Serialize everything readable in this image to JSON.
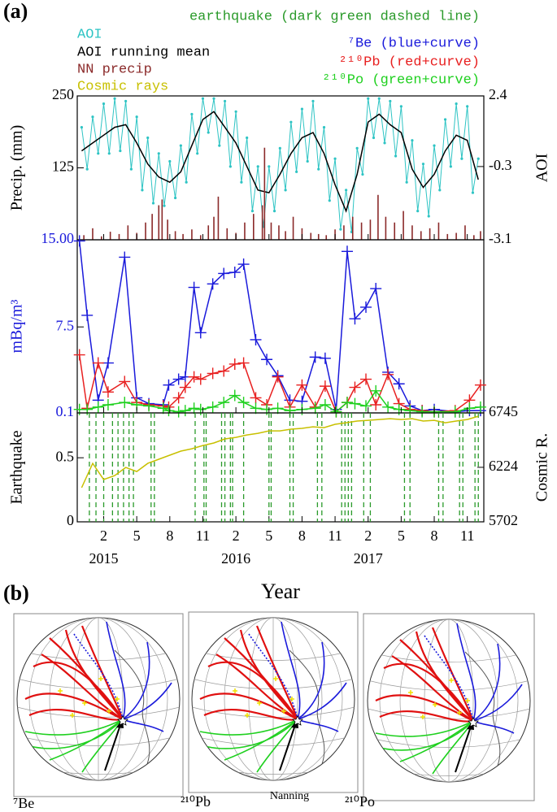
{
  "figure": {
    "panel_labels": [
      "(a)",
      "(b)"
    ]
  },
  "maps": {
    "labels": [
      "⁷Be",
      "²¹⁰Pb",
      "²¹⁰Po"
    ],
    "annotation": "Nanning"
  },
  "chart_data": [
    {
      "type": "line",
      "ylabel": "Precip. (mm)",
      "y2label": "AOI",
      "xlim": [
        -0.4,
        36.5
      ],
      "ylim": [
        0,
        250
      ],
      "yticks": [
        250,
        125
      ],
      "y2lim": [
        -3.1,
        2.4
      ],
      "y2ticks": [
        2.4,
        -0.3,
        -3.1
      ],
      "series": [
        {
          "name": "AOI",
          "color": "#2ec4c4",
          "axis": "y2",
          "marker": "dot",
          "x": [
            0,
            0.5,
            1,
            1.5,
            2,
            2.5,
            3,
            3.5,
            4,
            4.5,
            5,
            5.5,
            6,
            6.5,
            7,
            7.5,
            8,
            8.5,
            9,
            9.5,
            10,
            10.5,
            11,
            11.5,
            12,
            12.5,
            13,
            13.5,
            14,
            14.5,
            15,
            15.5,
            16,
            16.5,
            17,
            17.5,
            18,
            18.5,
            19,
            19.5,
            20,
            20.5,
            21,
            21.5,
            22,
            22.5,
            23,
            23.5,
            24,
            24.5,
            25,
            25.5,
            26,
            26.5,
            27,
            27.5,
            28,
            28.5,
            29,
            29.5,
            30,
            30.5,
            31,
            31.5,
            32,
            32.5,
            33,
            33.5,
            34,
            34.5,
            35,
            35.5,
            36
          ],
          "values": [
            1.2,
            -0.4,
            1.6,
            0.2,
            2.1,
            0.2,
            2.3,
            0.3,
            2.2,
            -0.4,
            1.6,
            -1.2,
            0.8,
            -1.7,
            0.2,
            -1.8,
            -0.1,
            -1.5,
            0.5,
            -0.9,
            1.7,
            0.2,
            2.3,
            1.0,
            2.3,
            0.5,
            2.2,
            -0.3,
            1.8,
            -0.9,
            0.8,
            -2.0,
            -0.3,
            -2.6,
            -0.3,
            -2.0,
            0.4,
            -1.2,
            1.4,
            -0.5,
            1.9,
            -0.1,
            2.2,
            -0.4,
            1.2,
            -1.6,
            0.0,
            -2.7,
            -1.2,
            -2.8,
            0.4,
            -0.6,
            2.3,
            0.8,
            2.3,
            0.6,
            2.2,
            0.1,
            2.0,
            -0.9,
            0.7,
            -2.0,
            -0.2,
            -2.2,
            0.5,
            -1.2,
            1.5,
            -0.3,
            2.1,
            0.0,
            2.0,
            -1.3,
            0.0
          ]
        },
        {
          "name": "AOI running mean",
          "color": "#000000",
          "axis": "y2",
          "x": [
            0,
            1,
            2,
            3,
            4,
            5,
            6,
            7,
            8,
            9,
            10,
            11,
            12,
            13,
            14,
            15,
            16,
            17,
            18,
            19,
            20,
            21,
            22,
            23,
            24,
            25,
            26,
            27,
            28,
            29,
            30,
            31,
            32,
            33,
            34,
            35,
            36
          ],
          "values": [
            0.3,
            0.6,
            0.9,
            1.2,
            1.3,
            0.6,
            -0.2,
            -0.7,
            -0.9,
            -0.5,
            0.5,
            1.5,
            1.8,
            1.2,
            0.6,
            -0.3,
            -1.2,
            -1.3,
            -0.6,
            0.2,
            0.8,
            1.0,
            0.2,
            -1.0,
            -2.0,
            -0.6,
            1.4,
            1.7,
            1.3,
            1.0,
            -0.4,
            -1.1,
            -0.6,
            0.3,
            0.9,
            0.7,
            -0.8
          ]
        },
        {
          "name": "NN precip",
          "color": "#8b2a2a",
          "type": "bar",
          "x": [
            0.2,
            1.0,
            1.8,
            2.6,
            3.4,
            4.2,
            5.0,
            5.8,
            6.4,
            7.0,
            7.3,
            7.8,
            8.5,
            9.2,
            10.0,
            10.8,
            11.5,
            12.0,
            12.4,
            13.2,
            14.0,
            14.8,
            15.6,
            16.4,
            16.6,
            17.2,
            17.9,
            18.5,
            19.2,
            20.0,
            20.8,
            21.5,
            22.2,
            23.0,
            23.8,
            24.6,
            25.4,
            26.2,
            26.9,
            27.6,
            28.4,
            29.2,
            30.0,
            30.8,
            31.6,
            32.4,
            33.2,
            34.0,
            34.8,
            35.6,
            36.2
          ],
          "values": [
            8,
            20,
            6,
            14,
            10,
            25,
            12,
            30,
            45,
            60,
            70,
            35,
            15,
            10,
            18,
            8,
            25,
            40,
            75,
            20,
            12,
            30,
            45,
            60,
            160,
            30,
            25,
            15,
            40,
            20,
            12,
            10,
            8,
            18,
            25,
            40,
            30,
            35,
            78,
            40,
            30,
            50,
            25,
            15,
            20,
            30,
            10,
            12,
            25,
            8,
            15
          ]
        }
      ]
    },
    {
      "type": "line",
      "ylabel": "mBq/m³",
      "label_color": "#1a1adb",
      "xlim": [
        -0.4,
        36.5
      ],
      "ylim": [
        0.1,
        15
      ],
      "yticks": [
        {
          "value": 15,
          "label": "15.00"
        },
        7.5,
        0.1
      ],
      "x": [
        -0.2,
        0.5,
        1.5,
        2.4,
        3.9,
        5.0,
        6.1,
        7.4,
        7.9,
        8.8,
        9.4,
        10.2,
        10.8,
        11.9,
        12.9,
        13.9,
        14.7,
        15.8,
        16.8,
        17.8,
        18.9,
        20.0,
        21.2,
        22.1,
        23.1,
        24.1,
        24.8,
        25.8,
        26.7,
        27.8,
        28.8,
        29.8,
        30.9,
        32.0,
        33.9,
        35.2,
        36.2
      ],
      "series": [
        {
          "name": "⁷Be (blue+curve)",
          "color": "#1a1adb",
          "marker": "+",
          "values": [
            14.9,
            8.5,
            1.2,
            4.4,
            13.5,
            1.4,
            0.9,
            0.8,
            2.5,
            3.0,
            3.2,
            10.9,
            7.0,
            11.2,
            12.1,
            12.2,
            12.9,
            6.4,
            4.7,
            3.3,
            1.2,
            1.1,
            4.9,
            4.8,
            0.4,
            14.0,
            8.2,
            9.2,
            10.8,
            3.6,
            2.6,
            0.7,
            0.3,
            0.4,
            0.2,
            0.3,
            0.3
          ]
        },
        {
          "name": "²¹⁰Pb (red+curve)",
          "color": "#e82020",
          "marker": "+",
          "values": [
            5.1,
            0.5,
            4.4,
            1.9,
            2.8,
            1.0,
            0.8,
            0.7,
            0.6,
            1.4,
            2.3,
            3.2,
            3.0,
            3.5,
            3.7,
            4.3,
            4.4,
            1.4,
            0.8,
            3.2,
            0.6,
            2.5,
            0.6,
            2.4,
            0.2,
            1.0,
            2.3,
            3.0,
            0.8,
            3.4,
            0.9,
            0.4,
            0.3,
            0.2,
            0.3,
            1.2,
            2.5
          ]
        },
        {
          "name": "²¹⁰Po (green+curve)",
          "color": "#1fd01f",
          "marker": "+",
          "values": [
            0.4,
            0.4,
            0.6,
            0.8,
            1.0,
            0.8,
            0.7,
            0.5,
            0.3,
            0.2,
            0.3,
            0.5,
            0.4,
            0.6,
            1.0,
            1.6,
            1.0,
            0.5,
            0.4,
            0.5,
            0.3,
            0.4,
            0.5,
            0.8,
            0.2,
            1.0,
            0.9,
            0.7,
            2.0,
            0.6,
            0.4,
            0.3,
            0.2,
            0.2,
            0.2,
            0.5,
            0.6
          ]
        }
      ]
    },
    {
      "type": "line",
      "ylabel": "Earthquake",
      "y2label": "Cosmic R.",
      "xlabel": "Year",
      "xlim": [
        -0.4,
        36.5
      ],
      "xticks": [
        {
          "value": 2,
          "label": "2"
        },
        {
          "value": 5,
          "label": "5"
        },
        {
          "value": 8,
          "label": "8"
        },
        {
          "value": 11,
          "label": "11"
        },
        {
          "value": 14,
          "label": "2"
        },
        {
          "value": 17,
          "label": "5"
        },
        {
          "value": 20,
          "label": "8"
        },
        {
          "value": 23,
          "label": "11"
        },
        {
          "value": 26,
          "label": "2"
        },
        {
          "value": 29,
          "label": "5"
        },
        {
          "value": 32,
          "label": "8"
        },
        {
          "value": 35,
          "label": "11"
        }
      ],
      "year_labels": [
        "2015",
        "2016",
        "2017"
      ],
      "ylim": [
        0,
        0.85
      ],
      "yticks": [
        0.5,
        0
      ],
      "y2lim": [
        5702,
        6745
      ],
      "y2ticks": [
        6745,
        6224,
        5702
      ],
      "series": [
        {
          "name": "earthquake (dark green dashed line)",
          "color": "#2a9a2a",
          "dashed": true,
          "x": [
            0.7,
            1.3,
            2.0,
            2.8,
            3.3,
            3.8,
            4.3,
            4.7,
            6.3,
            6.6,
            10.3,
            11.1,
            11.3,
            12.7,
            13.0,
            13.5,
            13.7,
            14.7,
            17.0,
            17.2,
            18.9,
            19.2,
            21.4,
            21.8,
            23.6,
            23.9,
            24.2,
            24.5,
            25.6,
            26.2,
            29.3,
            29.8,
            32.4,
            32.8,
            34.3,
            34.6,
            35.7,
            36.0
          ]
        },
        {
          "name": "Cosmic rays",
          "color": "#c8c000",
          "axis": "y2",
          "x": [
            0,
            1,
            2,
            3,
            4,
            5,
            6,
            7,
            8,
            9,
            10,
            11,
            12,
            13,
            14,
            15,
            16,
            17,
            18,
            19,
            20,
            21,
            22,
            23,
            24,
            25,
            26,
            27,
            28,
            29,
            30,
            31,
            32,
            33,
            34,
            35,
            36
          ],
          "values": [
            6029,
            6262,
            6107,
            6145,
            6223,
            6184,
            6262,
            6301,
            6340,
            6379,
            6402,
            6433,
            6457,
            6496,
            6511,
            6534,
            6550,
            6573,
            6573,
            6589,
            6597,
            6612,
            6604,
            6636,
            6651,
            6667,
            6674,
            6682,
            6690,
            6682,
            6690,
            6667,
            6674,
            6651,
            6667,
            6682,
            6713
          ]
        }
      ]
    }
  ]
}
